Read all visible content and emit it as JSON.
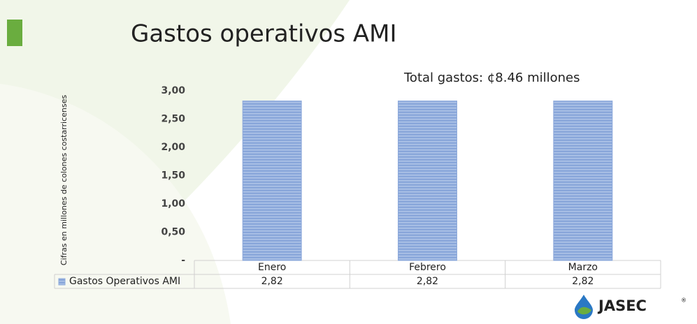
{
  "chart_data": {
    "type": "bar",
    "title": "Gastos operativos AMI",
    "annotation": "Total gastos: ¢8.46 millones",
    "y_label": "Cifras en millones de colones costarricenses",
    "categories": [
      "Enero",
      "Febrero",
      "Marzo"
    ],
    "series": [
      {
        "name": "Gastos Operativos AMI",
        "color": "#8eaadb",
        "values": [
          2.82,
          2.82,
          2.82
        ],
        "value_labels": [
          "2,82",
          "2,82",
          "2,82"
        ]
      }
    ],
    "ylim": [
      0,
      3
    ],
    "yticks": [
      {
        "value": 0,
        "label": "-"
      },
      {
        "value": 0.5,
        "label": "0,50"
      },
      {
        "value": 1,
        "label": "1,00"
      },
      {
        "value": 1.5,
        "label": "1,50"
      },
      {
        "value": 2,
        "label": "2,00"
      },
      {
        "value": 2.5,
        "label": "2,50"
      },
      {
        "value": 3,
        "label": "3,00"
      }
    ],
    "grid": false
  },
  "logo": "JASEC",
  "logo_mark": "®"
}
